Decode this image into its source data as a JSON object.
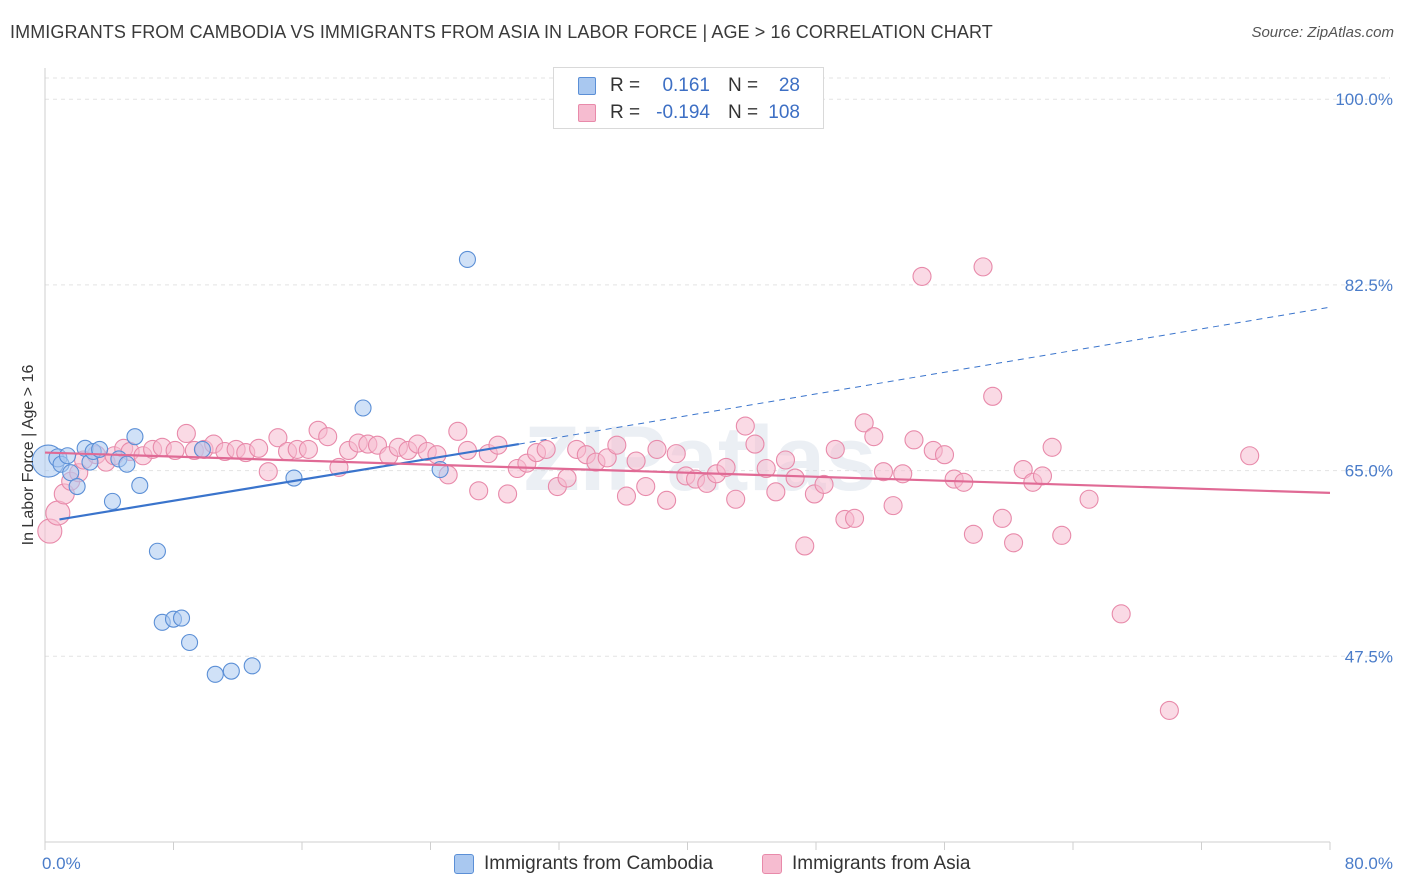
{
  "title": "IMMIGRANTS FROM CAMBODIA VS IMMIGRANTS FROM ASIA IN LABOR FORCE | AGE > 16 CORRELATION CHART",
  "source": "Source: ZipAtlas.com",
  "watermark": "ZIPatlas",
  "colors": {
    "cambodia_fill": "#a9c8f0",
    "cambodia_stroke": "#5b8fd6",
    "cambodia_line": "#3a74cc",
    "asia_fill": "#f6bcd0",
    "asia_stroke": "#e88aaa",
    "asia_line": "#e06a95",
    "tick_label": "#4a7cc9",
    "grid": "#e3e3e3"
  },
  "legend_top": {
    "rows": [
      {
        "r_label": "R =",
        "r_value": "0.161",
        "n_label": "N =",
        "n_value": "28"
      },
      {
        "r_label": "R =",
        "r_value": "-0.194",
        "n_label": "N =",
        "n_value": "108"
      }
    ]
  },
  "legend_bottom": {
    "items": [
      "Immigrants from Cambodia",
      "Immigrants from Asia"
    ]
  },
  "chart_data": {
    "type": "scatter",
    "title": "IMMIGRANTS FROM CAMBODIA VS IMMIGRANTS FROM ASIA IN LABOR FORCE | AGE > 16 CORRELATION CHART",
    "xlabel": "",
    "ylabel": "In Labor Force | Age > 16",
    "xlim": [
      0,
      80
    ],
    "ylim": [
      30,
      102
    ],
    "x_tick_labels": [
      "0.0%",
      "80.0%"
    ],
    "y_ticks": [
      47.5,
      65.0,
      82.5,
      100.0
    ],
    "y_tick_labels": [
      "47.5%",
      "65.0%",
      "82.5%",
      "100.0%"
    ],
    "grid": true,
    "legend_position": "bottom",
    "series": [
      {
        "name": "Immigrants from Cambodia",
        "r": 0.161,
        "n": 28,
        "trend": {
          "x0": 0.9,
          "y0": 60.4,
          "x1": 29.5,
          "y1": 67.5,
          "dash_to_x": 80,
          "dash_to_y": 80.4
        },
        "points": [
          [
            0.2,
            65.9,
            16
          ],
          [
            0.8,
            66.2,
            9
          ],
          [
            1.0,
            65.6,
            8
          ],
          [
            1.4,
            66.4,
            8
          ],
          [
            1.6,
            64.8,
            8
          ],
          [
            2.0,
            63.5,
            8
          ],
          [
            2.5,
            67.1,
            8
          ],
          [
            2.8,
            65.8,
            8
          ],
          [
            3.0,
            66.8,
            8
          ],
          [
            3.4,
            67.0,
            8
          ],
          [
            4.2,
            62.1,
            8
          ],
          [
            4.6,
            66.1,
            8
          ],
          [
            5.1,
            65.6,
            8
          ],
          [
            5.6,
            68.2,
            8
          ],
          [
            5.9,
            63.6,
            8
          ],
          [
            7.0,
            57.4,
            8
          ],
          [
            7.3,
            50.7,
            8
          ],
          [
            8.0,
            51.0,
            8
          ],
          [
            8.5,
            51.1,
            8
          ],
          [
            9.0,
            48.8,
            8
          ],
          [
            9.8,
            67.0,
            8
          ],
          [
            10.6,
            45.8,
            8
          ],
          [
            11.6,
            46.1,
            8
          ],
          [
            12.9,
            46.6,
            8
          ],
          [
            15.5,
            64.3,
            8
          ],
          [
            19.8,
            70.9,
            8
          ],
          [
            24.6,
            65.1,
            8
          ],
          [
            26.3,
            84.9,
            8
          ]
        ]
      },
      {
        "name": "Immigrants from Asia",
        "r": -0.194,
        "n": 108,
        "trend": {
          "x0": 0,
          "y0": 66.7,
          "x1": 80,
          "y1": 62.9
        },
        "points": [
          [
            0.3,
            59.3,
            12
          ],
          [
            0.8,
            61.0,
            12
          ],
          [
            1.2,
            62.8,
            10
          ],
          [
            1.6,
            64.0,
            9
          ],
          [
            2.1,
            64.8,
            9
          ],
          [
            2.4,
            66.0,
            9
          ],
          [
            3.2,
            66.5,
            9
          ],
          [
            3.8,
            65.8,
            9
          ],
          [
            4.3,
            66.4,
            9
          ],
          [
            4.9,
            67.1,
            9
          ],
          [
            5.3,
            66.8,
            9
          ],
          [
            6.1,
            66.4,
            9
          ],
          [
            6.7,
            67.0,
            9
          ],
          [
            7.3,
            67.2,
            9
          ],
          [
            8.1,
            66.9,
            9
          ],
          [
            8.8,
            68.5,
            9
          ],
          [
            9.3,
            66.9,
            9
          ],
          [
            9.9,
            67.0,
            9
          ],
          [
            10.5,
            67.5,
            9
          ],
          [
            11.2,
            66.8,
            9
          ],
          [
            11.9,
            67.0,
            9
          ],
          [
            12.5,
            66.7,
            9
          ],
          [
            13.3,
            67.1,
            9
          ],
          [
            13.9,
            64.9,
            9
          ],
          [
            14.5,
            68.1,
            9
          ],
          [
            15.1,
            66.8,
            9
          ],
          [
            15.7,
            67.0,
            9
          ],
          [
            16.4,
            67.0,
            9
          ],
          [
            17.0,
            68.8,
            9
          ],
          [
            17.6,
            68.2,
            9
          ],
          [
            18.3,
            65.3,
            9
          ],
          [
            18.9,
            66.9,
            9
          ],
          [
            19.5,
            67.6,
            9
          ],
          [
            20.1,
            67.5,
            9
          ],
          [
            20.7,
            67.4,
            9
          ],
          [
            21.4,
            66.4,
            9
          ],
          [
            22.0,
            67.2,
            9
          ],
          [
            22.6,
            66.9,
            9
          ],
          [
            23.2,
            67.5,
            9
          ],
          [
            23.8,
            66.8,
            9
          ],
          [
            24.4,
            66.5,
            9
          ],
          [
            25.1,
            64.6,
            9
          ],
          [
            25.7,
            68.7,
            9
          ],
          [
            26.3,
            66.9,
            9
          ],
          [
            27.0,
            63.1,
            9
          ],
          [
            27.6,
            66.6,
            9
          ],
          [
            28.2,
            67.4,
            9
          ],
          [
            28.8,
            62.8,
            9
          ],
          [
            29.4,
            65.2,
            9
          ],
          [
            30.0,
            65.7,
            9
          ],
          [
            30.6,
            66.7,
            9
          ],
          [
            31.2,
            67.0,
            9
          ],
          [
            31.9,
            63.5,
            9
          ],
          [
            32.5,
            64.3,
            9
          ],
          [
            33.1,
            67.0,
            9
          ],
          [
            33.7,
            66.5,
            9
          ],
          [
            34.3,
            65.8,
            9
          ],
          [
            35.0,
            66.2,
            9
          ],
          [
            35.6,
            67.4,
            9
          ],
          [
            36.2,
            62.6,
            9
          ],
          [
            36.8,
            65.9,
            9
          ],
          [
            37.4,
            63.5,
            9
          ],
          [
            38.1,
            67.0,
            9
          ],
          [
            38.7,
            62.2,
            9
          ],
          [
            39.3,
            66.6,
            9
          ],
          [
            39.9,
            64.5,
            9
          ],
          [
            40.5,
            64.2,
            9
          ],
          [
            41.2,
            63.8,
            9
          ],
          [
            41.8,
            64.7,
            9
          ],
          [
            42.4,
            65.3,
            9
          ],
          [
            43.0,
            62.3,
            9
          ],
          [
            43.6,
            69.2,
            9
          ],
          [
            44.2,
            67.5,
            9
          ],
          [
            44.9,
            65.2,
            9
          ],
          [
            45.5,
            63.0,
            9
          ],
          [
            46.1,
            66.0,
            9
          ],
          [
            46.7,
            64.3,
            9
          ],
          [
            47.3,
            57.9,
            9
          ],
          [
            47.9,
            62.8,
            9
          ],
          [
            48.5,
            63.7,
            9
          ],
          [
            49.2,
            67.0,
            9
          ],
          [
            49.8,
            60.4,
            9
          ],
          [
            50.4,
            60.5,
            9
          ],
          [
            51.0,
            69.5,
            9
          ],
          [
            51.6,
            68.2,
            9
          ],
          [
            52.2,
            64.9,
            9
          ],
          [
            52.8,
            61.7,
            9
          ],
          [
            53.4,
            64.7,
            9
          ],
          [
            54.1,
            67.9,
            9
          ],
          [
            54.6,
            83.3,
            9
          ],
          [
            55.3,
            66.9,
            9
          ],
          [
            56.0,
            66.5,
            9
          ],
          [
            56.6,
            64.2,
            9
          ],
          [
            57.2,
            63.9,
            9
          ],
          [
            57.8,
            59.0,
            9
          ],
          [
            58.4,
            84.2,
            9
          ],
          [
            59.0,
            72.0,
            9
          ],
          [
            59.6,
            60.5,
            9
          ],
          [
            60.3,
            58.2,
            9
          ],
          [
            60.9,
            65.1,
            9
          ],
          [
            61.5,
            63.9,
            9
          ],
          [
            62.1,
            64.5,
            9
          ],
          [
            62.7,
            67.2,
            9
          ],
          [
            63.3,
            58.9,
            9
          ],
          [
            65.0,
            62.3,
            9
          ],
          [
            67.0,
            51.5,
            9
          ],
          [
            70.0,
            42.4,
            9
          ],
          [
            75.0,
            66.4,
            9
          ]
        ]
      }
    ]
  }
}
